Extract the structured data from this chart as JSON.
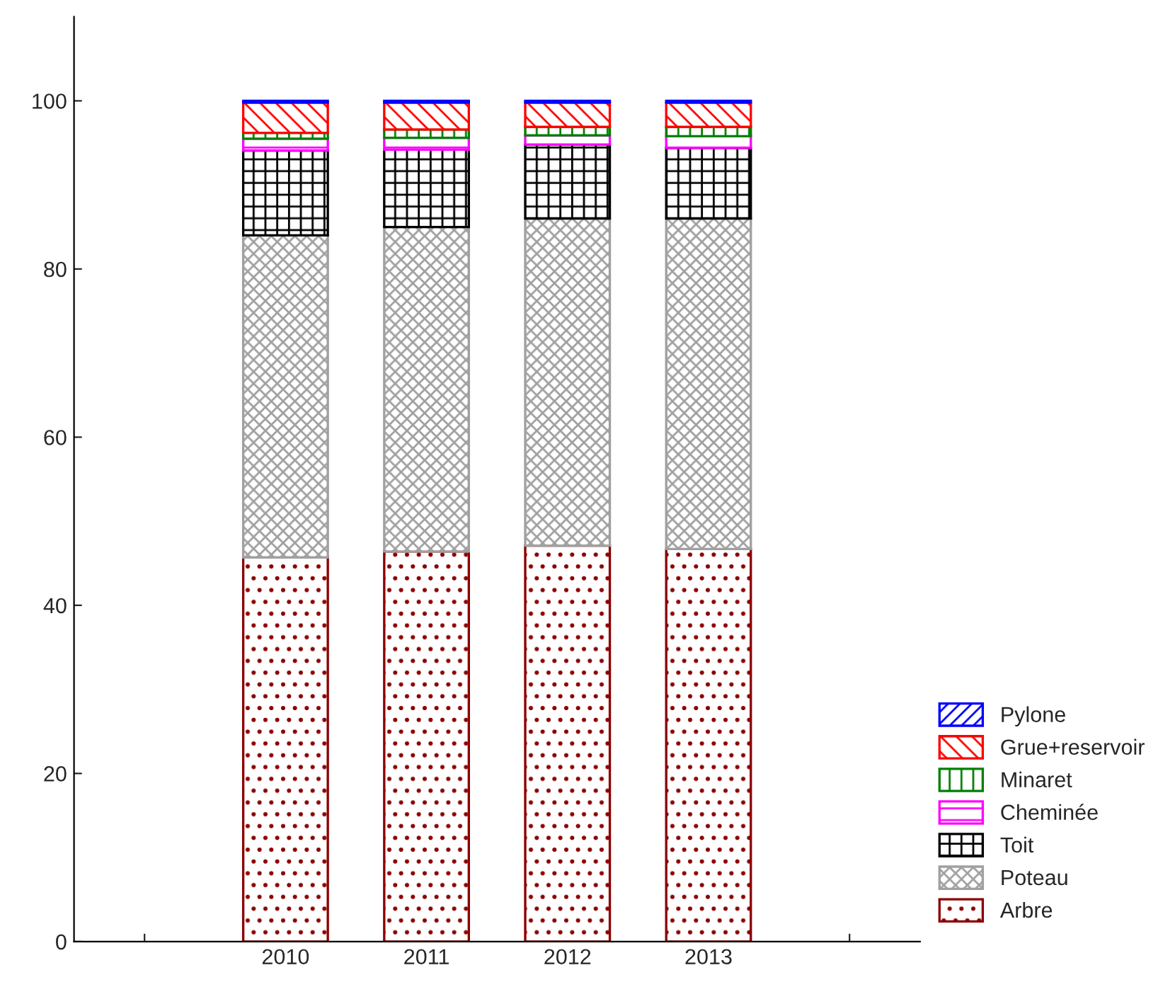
{
  "chart_data": {
    "type": "bar",
    "stacked": true,
    "categories": [
      null,
      "2010",
      "2011",
      "2012",
      "2013",
      null
    ],
    "series": [
      {
        "name": "Arbre",
        "color": "#8b0000",
        "values": [
          null,
          45.7,
          46.4,
          47.1,
          46.7,
          null
        ]
      },
      {
        "name": "Poteau",
        "color": "#a0a0a0",
        "values": [
          null,
          38.3,
          38.6,
          38.9,
          39.3,
          null
        ]
      },
      {
        "name": "Toit",
        "color": "#000000",
        "values": [
          null,
          10.1,
          9.2,
          8.8,
          8.4,
          null
        ]
      },
      {
        "name": "Cheminée",
        "color": "#ff00ff",
        "values": [
          null,
          1.4,
          1.4,
          1.1,
          1.4,
          null
        ]
      },
      {
        "name": "Minaret",
        "color": "#008000",
        "values": [
          null,
          0.7,
          1.0,
          1.0,
          1.1,
          null
        ]
      },
      {
        "name": "Grue+reservoir",
        "color": "#ff0000",
        "values": [
          null,
          3.6,
          3.2,
          2.9,
          2.9,
          null
        ]
      },
      {
        "name": "Pylone",
        "color": "#0000ff",
        "values": [
          null,
          0.2,
          0.2,
          0.2,
          0.2,
          null
        ]
      }
    ],
    "ylim": [
      0,
      110
    ],
    "yticks": [
      0,
      20,
      40,
      60,
      80,
      100
    ],
    "grid": false,
    "legend": "bottom right"
  }
}
